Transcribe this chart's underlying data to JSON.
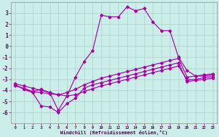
{
  "xlabel": "Windchill (Refroidissement éolien,°C)",
  "bg_color": "#cceee8",
  "line_color": "#aa00aa",
  "grid_color": "#bbdddd",
  "xlim": [
    -0.5,
    23.5
  ],
  "ylim": [
    -7,
    4
  ],
  "yticks": [
    -6,
    -5,
    -4,
    -3,
    -2,
    -1,
    0,
    1,
    2,
    3
  ],
  "xticks": [
    0,
    1,
    2,
    3,
    4,
    5,
    6,
    7,
    8,
    9,
    10,
    11,
    12,
    13,
    14,
    15,
    16,
    17,
    18,
    19,
    20,
    21,
    22,
    23
  ],
  "series1_x": [
    0,
    1,
    2,
    3,
    4,
    5,
    6,
    7,
    8,
    9,
    10,
    11,
    12,
    13,
    14,
    15,
    16,
    17,
    18,
    19,
    20,
    21,
    22,
    23
  ],
  "series1_y": [
    -3.5,
    -3.9,
    -4.1,
    -3.9,
    -4.2,
    -5.8,
    -4.5,
    -2.8,
    -1.4,
    -0.4,
    2.8,
    2.65,
    2.65,
    3.55,
    3.2,
    3.4,
    2.2,
    1.4,
    1.4,
    -1.0,
    -2.2,
    -2.7,
    -2.7,
    -2.6
  ],
  "series2_x": [
    0,
    1,
    2,
    3,
    4,
    5,
    6,
    7,
    8,
    9,
    10,
    11,
    12,
    13,
    14,
    15,
    16,
    17,
    18,
    19,
    20,
    21,
    22,
    23
  ],
  "series2_y": [
    -3.6,
    -3.8,
    -4.1,
    -4.2,
    -4.3,
    -4.4,
    -4.2,
    -3.9,
    -3.5,
    -3.2,
    -2.9,
    -2.7,
    -2.5,
    -2.3,
    -2.1,
    -1.9,
    -1.7,
    -1.5,
    -1.3,
    -1.1,
    -2.8,
    -2.7,
    -2.6,
    -2.5
  ],
  "series3_x": [
    0,
    1,
    2,
    3,
    4,
    5,
    6,
    7,
    8,
    9,
    10,
    11,
    12,
    13,
    14,
    15,
    16,
    17,
    18,
    19,
    20,
    21,
    22,
    23
  ],
  "series3_y": [
    -3.4,
    -3.6,
    -3.8,
    -4.0,
    -4.2,
    -4.4,
    -4.5,
    -4.4,
    -4.1,
    -3.85,
    -3.6,
    -3.4,
    -3.2,
    -3.0,
    -2.8,
    -2.6,
    -2.4,
    -2.2,
    -2.0,
    -1.8,
    -3.05,
    -3.0,
    -2.85,
    -2.75
  ],
  "series4_x": [
    0,
    1,
    2,
    3,
    4,
    5,
    6,
    7,
    8,
    9,
    10,
    11,
    12,
    13,
    14,
    15,
    16,
    17,
    18,
    19,
    20,
    21,
    22,
    23
  ],
  "series4_y": [
    -3.5,
    -3.9,
    -4.2,
    -5.4,
    -5.5,
    -6.0,
    -5.2,
    -4.7,
    -3.8,
    -3.5,
    -3.3,
    -3.1,
    -2.9,
    -2.7,
    -2.5,
    -2.3,
    -2.1,
    -1.9,
    -1.7,
    -1.5,
    -3.2,
    -3.1,
    -3.0,
    -2.9
  ]
}
